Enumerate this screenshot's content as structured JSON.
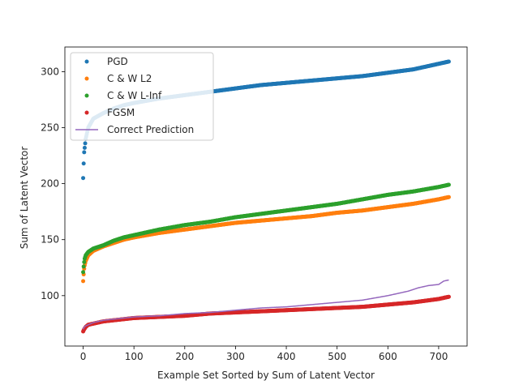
{
  "chart_data": {
    "type": "scatter",
    "title": "",
    "xlabel": "Example Set Sorted by Sum of Latent Vector",
    "ylabel": "Sum of Latent Vector",
    "xlim": [
      -36,
      756
    ],
    "ylim": [
      55,
      322
    ],
    "xticks": [
      0,
      100,
      200,
      300,
      400,
      500,
      600,
      700
    ],
    "yticks": [
      100,
      150,
      200,
      250,
      300
    ],
    "grid": false,
    "legend_position": "upper-left",
    "n_points": 721,
    "series": [
      {
        "name": "PGD",
        "kind": "scatter",
        "color": "#1f77b4",
        "x": [
          0,
          1,
          2,
          5,
          10,
          20,
          40,
          60,
          80,
          100,
          150,
          200,
          250,
          300,
          350,
          400,
          450,
          500,
          550,
          600,
          650,
          700,
          720
        ],
        "y": [
          205,
          218,
          228,
          240,
          250,
          258,
          263,
          267,
          270,
          272,
          276,
          279,
          282,
          285,
          288,
          290,
          292,
          294,
          296,
          299,
          302,
          307,
          309
        ]
      },
      {
        "name": "C & W L2",
        "kind": "scatter",
        "color": "#ff7f0e",
        "x": [
          0,
          1,
          2,
          3,
          5,
          10,
          20,
          40,
          60,
          80,
          100,
          150,
          200,
          250,
          300,
          350,
          400,
          450,
          500,
          550,
          600,
          650,
          700,
          720
        ],
        "y": [
          113,
          119,
          124,
          127,
          131,
          136,
          140,
          144,
          147,
          150,
          152,
          156,
          159,
          162,
          165,
          167,
          169,
          171,
          174,
          176,
          179,
          182,
          186,
          188
        ]
      },
      {
        "name": "C & W L-Inf",
        "kind": "scatter",
        "color": "#2ca02c",
        "x": [
          0,
          1,
          2,
          3,
          5,
          10,
          20,
          40,
          60,
          80,
          100,
          150,
          200,
          250,
          300,
          350,
          400,
          450,
          500,
          550,
          600,
          650,
          700,
          720
        ],
        "y": [
          121,
          126,
          130,
          133,
          136,
          139,
          142,
          145,
          149,
          152,
          154,
          159,
          163,
          166,
          170,
          173,
          176,
          179,
          182,
          186,
          190,
          193,
          197,
          199
        ]
      },
      {
        "name": "FGSM",
        "kind": "scatter",
        "color": "#d62728",
        "x": [
          0,
          2,
          5,
          10,
          20,
          40,
          60,
          80,
          100,
          150,
          200,
          250,
          300,
          350,
          400,
          450,
          500,
          550,
          600,
          650,
          700,
          720
        ],
        "y": [
          68,
          70,
          72,
          74,
          75,
          77,
          78,
          79,
          80,
          81,
          82,
          84,
          85,
          86,
          87,
          88,
          89,
          90,
          92,
          94,
          97,
          99
        ]
      },
      {
        "name": "Correct Prediction",
        "kind": "line",
        "color": "#9467bd",
        "x": [
          0,
          2,
          5,
          10,
          20,
          40,
          60,
          80,
          100,
          150,
          200,
          250,
          300,
          350,
          400,
          450,
          500,
          550,
          600,
          620,
          640,
          660,
          680,
          700,
          710,
          720
        ],
        "y": [
          70,
          72,
          73,
          74,
          76,
          78,
          79,
          80,
          81,
          82,
          84,
          85,
          87,
          89,
          90,
          92,
          94,
          96,
          100,
          102,
          104,
          107,
          109,
          110,
          113,
          114
        ]
      }
    ]
  }
}
